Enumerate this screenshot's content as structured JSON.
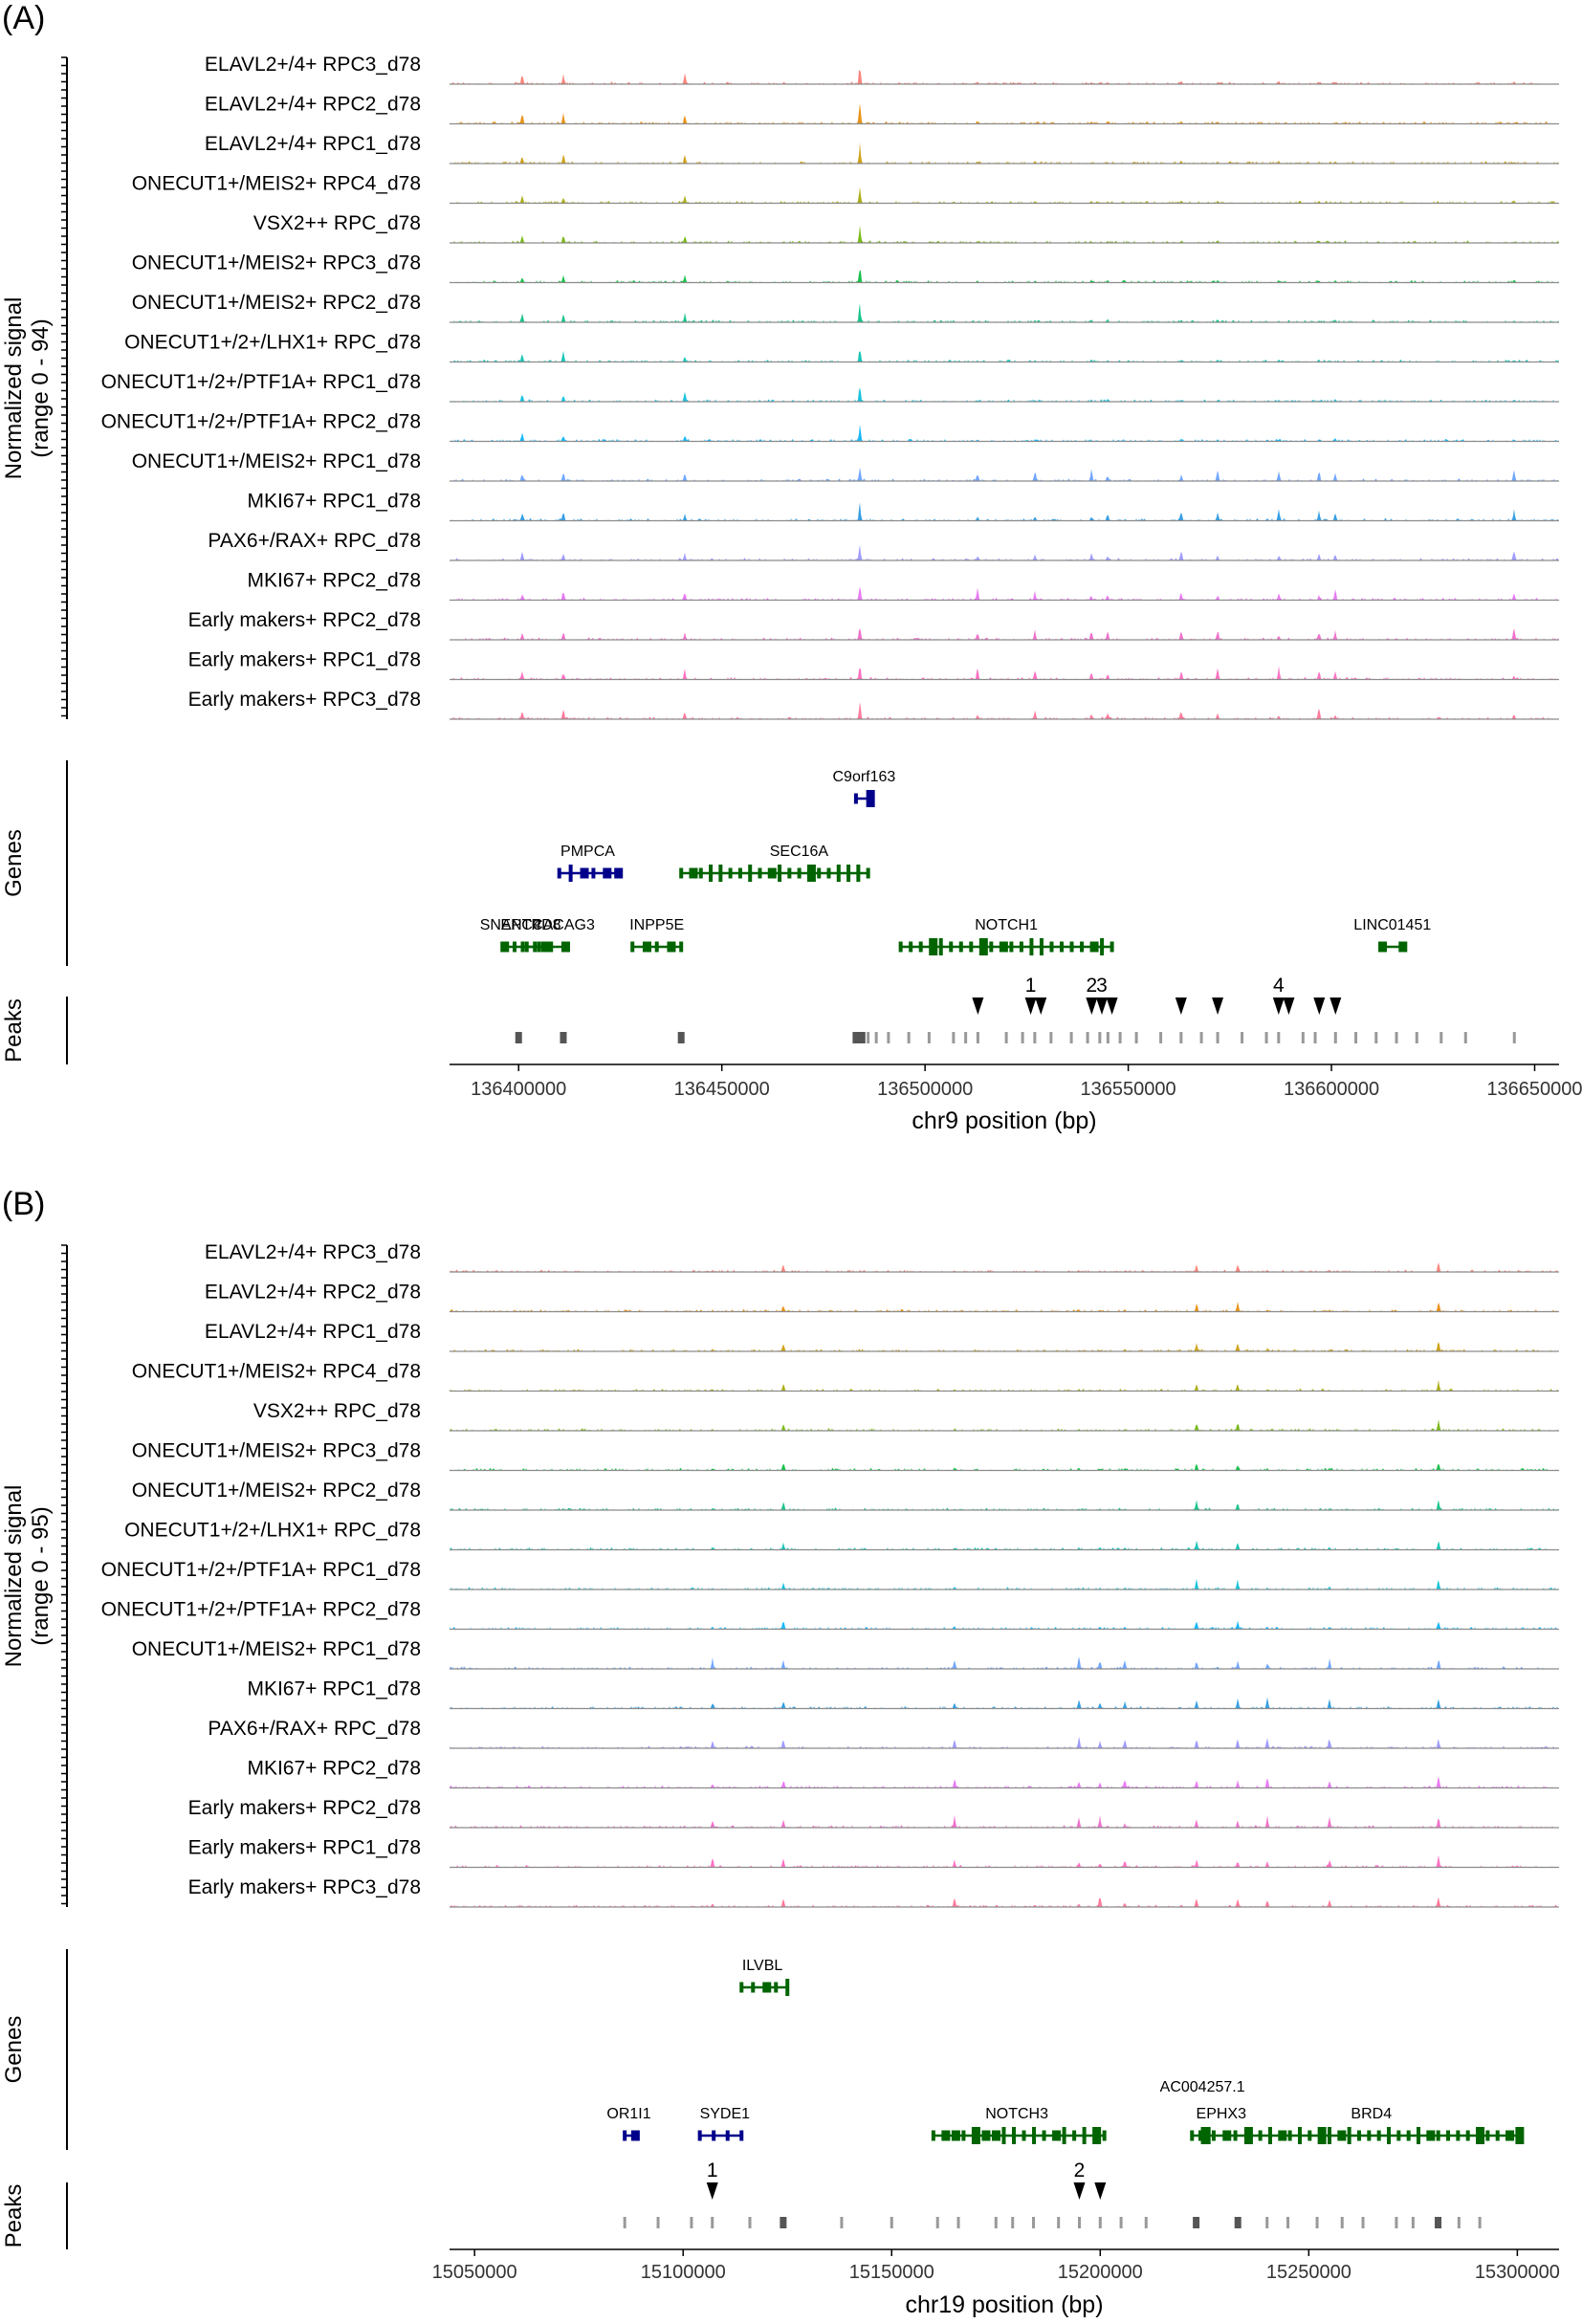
{
  "chart_data": [
    {
      "type": "area",
      "panel_label": "(A)",
      "ylabel_line1": "Normalized signal",
      "ylabel_line2": "(range 0 - 94)",
      "yrange": [
        0,
        94
      ],
      "xlabel": "chr9 position (bp)",
      "xlim": [
        136383000,
        136656000
      ],
      "xticks": [
        136400000,
        136450000,
        136500000,
        136550000,
        136600000,
        136650000
      ],
      "tick_labels": [
        "136400000",
        "136450000",
        "136500000",
        "136550000",
        "136600000",
        "136650000"
      ],
      "tracks": [
        {
          "name": "ELAVL2+/4+ RPC3_d78",
          "color": "#f8766d"
        },
        {
          "name": "ELAVL2+/4+ RPC2_d78",
          "color": "#e58700"
        },
        {
          "name": "ELAVL2+/4+ RPC1_d78",
          "color": "#c99800"
        },
        {
          "name": "ONECUT1+/MEIS2+ RPC4_d78",
          "color": "#a3a500"
        },
        {
          "name": "VSX2++ RPC_d78",
          "color": "#6bb100"
        },
        {
          "name": "ONECUT1+/MEIS2+ RPC3_d78",
          "color": "#00ba38"
        },
        {
          "name": "ONECUT1+/MEIS2+ RPC2_d78",
          "color": "#00bf7d"
        },
        {
          "name": "ONECUT1+/2+/LHX1+ RPC_d78",
          "color": "#00c0af"
        },
        {
          "name": "ONECUT1+/2+/PTF1A+ RPC1_d78",
          "color": "#00bcd8"
        },
        {
          "name": "ONECUT1+/2+/PTF1A+ RPC2_d78",
          "color": "#00b0f6"
        },
        {
          "name": "ONECUT1+/MEIS2+ RPC1_d78",
          "color": "#619cff"
        },
        {
          "name": "MKI67+ RPC1_d78",
          "color": "#1f95e0"
        },
        {
          "name": "PAX6+/RAX+ RPC_d78",
          "color": "#9590ff"
        },
        {
          "name": "MKI67+ RPC2_d78",
          "color": "#e76bf3"
        },
        {
          "name": "Early makers+ RPC2_d78",
          "color": "#f062c8"
        },
        {
          "name": "Early makers+ RPC1_d78",
          "color": "#ff62bc"
        },
        {
          "name": "Early makers+ RPC3_d78",
          "color": "#ff6c91"
        }
      ],
      "peaks_common": [
        136401000,
        136411000,
        136441000,
        136484000
      ],
      "peaks_late": [
        136513000,
        136527000,
        136541000,
        136545000,
        136563000,
        136572000,
        136587000,
        136597000,
        136601000,
        136645000
      ],
      "gene_track_label": "Genes",
      "genes": [
        {
          "name": "C9orf163",
          "start": 136483000,
          "end": 136486000,
          "row": 0,
          "color": "#00008b",
          "label_pos": 136485000
        },
        {
          "name": "PMPCA",
          "start": 136410000,
          "end": 136424000,
          "row": 1,
          "color": "#00008b",
          "label_pos": 136417000
        },
        {
          "name": "SEC16A",
          "start": 136440000,
          "end": 136486000,
          "row": 1,
          "color": "#006400",
          "label_pos": 136469000
        },
        {
          "name": "SNAPC4",
          "start": 136396000,
          "end": 136408000,
          "row": 2,
          "color": "#006400",
          "label_pos": 136398000
        },
        {
          "name": "ENTPD8",
          "start": 136401000,
          "end": 136406000,
          "row": 2,
          "color": "#006400",
          "label_pos": 136403000
        },
        {
          "name": "CACAG3",
          "start": 136404000,
          "end": 136411000,
          "row": 2,
          "color": "#006400",
          "label_pos": 136411000
        },
        {
          "name": "INPP5E",
          "start": 136428000,
          "end": 136440000,
          "row": 2,
          "color": "#006400",
          "label_pos": 136434000
        },
        {
          "name": "NOTCH1",
          "start": 136494000,
          "end": 136546000,
          "row": 2,
          "color": "#006400",
          "label_pos": 136520000
        },
        {
          "name": "LINC01451",
          "start": 136612000,
          "end": 136617000,
          "row": 2,
          "color": "#006400",
          "label_pos": 136615000
        }
      ],
      "peaks_track_label": "Peaks",
      "peak_intervals": [
        136400000,
        136411000,
        136440000,
        136483000,
        136484500,
        136486000,
        136488000,
        136491000,
        136496000,
        136501000,
        136507000,
        136510000,
        136513000,
        136520000,
        136524000,
        136527000,
        136531000,
        136536000,
        136540000,
        136543000,
        136545000,
        136548000,
        136552000,
        136558000,
        136563000,
        136568000,
        136572000,
        136578000,
        136584000,
        136587000,
        136593000,
        136596000,
        136601000,
        136606000,
        136611000,
        136616000,
        136621000,
        136627000,
        136633000,
        136645000
      ],
      "marked_peaks": [
        {
          "pos": 136513000,
          "label": ""
        },
        {
          "pos": 136526000,
          "label": "1"
        },
        {
          "pos": 136528500,
          "label": ""
        },
        {
          "pos": 136541000,
          "label": "2"
        },
        {
          "pos": 136543500,
          "label": "3"
        },
        {
          "pos": 136546000,
          "label": ""
        },
        {
          "pos": 136563000,
          "label": ""
        },
        {
          "pos": 136572000,
          "label": ""
        },
        {
          "pos": 136587000,
          "label": "4"
        },
        {
          "pos": 136589500,
          "label": ""
        },
        {
          "pos": 136597000,
          "label": ""
        },
        {
          "pos": 136601000,
          "label": ""
        }
      ]
    },
    {
      "type": "area",
      "panel_label": "(B)",
      "ylabel_line1": "Normalized signal",
      "ylabel_line2": "(range 0 - 95)",
      "yrange": [
        0,
        95
      ],
      "xlabel": "chr19 position (bp)",
      "xlim": [
        15044000,
        15310000
      ],
      "xticks": [
        15050000,
        15100000,
        15150000,
        15200000,
        15250000,
        15300000
      ],
      "tick_labels": [
        "15050000",
        "15100000",
        "15150000",
        "15200000",
        "15250000",
        "15300000"
      ],
      "tracks": [
        {
          "name": "ELAVL2+/4+ RPC3_d78",
          "color": "#f8766d"
        },
        {
          "name": "ELAVL2+/4+ RPC2_d78",
          "color": "#e58700"
        },
        {
          "name": "ELAVL2+/4+ RPC1_d78",
          "color": "#c99800"
        },
        {
          "name": "ONECUT1+/MEIS2+ RPC4_d78",
          "color": "#a3a500"
        },
        {
          "name": "VSX2++ RPC_d78",
          "color": "#6bb100"
        },
        {
          "name": "ONECUT1+/MEIS2+ RPC3_d78",
          "color": "#00ba38"
        },
        {
          "name": "ONECUT1+/MEIS2+ RPC2_d78",
          "color": "#00bf7d"
        },
        {
          "name": "ONECUT1+/2+/LHX1+ RPC_d78",
          "color": "#00c0af"
        },
        {
          "name": "ONECUT1+/2+/PTF1A+ RPC1_d78",
          "color": "#00bcd8"
        },
        {
          "name": "ONECUT1+/2+/PTF1A+ RPC2_d78",
          "color": "#00b0f6"
        },
        {
          "name": "ONECUT1+/MEIS2+ RPC1_d78",
          "color": "#619cff"
        },
        {
          "name": "MKI67+ RPC1_d78",
          "color": "#1f95e0"
        },
        {
          "name": "PAX6+/RAX+ RPC_d78",
          "color": "#9590ff"
        },
        {
          "name": "MKI67+ RPC2_d78",
          "color": "#e76bf3"
        },
        {
          "name": "Early makers+ RPC2_d78",
          "color": "#f062c8"
        },
        {
          "name": "Early makers+ RPC1_d78",
          "color": "#ff62bc"
        },
        {
          "name": "Early makers+ RPC3_d78",
          "color": "#ff6c91"
        }
      ],
      "peaks_common": [
        15124000,
        15223000,
        15233000,
        15281000
      ],
      "peaks_late": [
        15107000,
        15165000,
        15195000,
        15200000,
        15206000,
        15240000,
        15255000
      ],
      "gene_track_label": "Genes",
      "genes": [
        {
          "name": "ILVBL",
          "start": 15114000,
          "end": 15125000,
          "row": 0,
          "color": "#006400",
          "label_pos": 15119000
        },
        {
          "name": "OR1I1",
          "start": 15086000,
          "end": 15088000,
          "row": 2,
          "color": "#00008b",
          "label_pos": 15087000
        },
        {
          "name": "SYDE1",
          "start": 15104000,
          "end": 15114000,
          "row": 2,
          "color": "#00008b",
          "label_pos": 15110000
        },
        {
          "name": "NOTCH3",
          "start": 15160000,
          "end": 15201000,
          "row": 2,
          "color": "#006400",
          "label_pos": 15180000
        },
        {
          "name": "AC004257.1",
          "start": 15224000,
          "end": 15226000,
          "row": 2,
          "color": "#006400",
          "label_pos": 15224500,
          "label_up": true
        },
        {
          "name": "EPHX3",
          "start": 15222000,
          "end": 15235000,
          "row": 2,
          "color": "#006400",
          "label_pos": 15229000
        },
        {
          "name": "BRD4",
          "start": 15236000,
          "end": 15300000,
          "row": 2,
          "color": "#006400",
          "label_pos": 15265000
        }
      ],
      "peaks_track_label": "Peaks",
      "peak_intervals": [
        15086000,
        15094000,
        15102000,
        15107000,
        15116000,
        15124000,
        15138000,
        15150000,
        15161000,
        15166000,
        15175000,
        15179000,
        15184000,
        15190000,
        15195000,
        15200000,
        15205000,
        15211000,
        15223000,
        15233000,
        15240000,
        15245000,
        15252000,
        15258000,
        15263000,
        15271000,
        15275000,
        15281000,
        15286000,
        15291000
      ],
      "marked_peaks": [
        {
          "pos": 15107000,
          "label": "1"
        },
        {
          "pos": 15195000,
          "label": "2"
        },
        {
          "pos": 15200000,
          "label": ""
        }
      ]
    }
  ]
}
